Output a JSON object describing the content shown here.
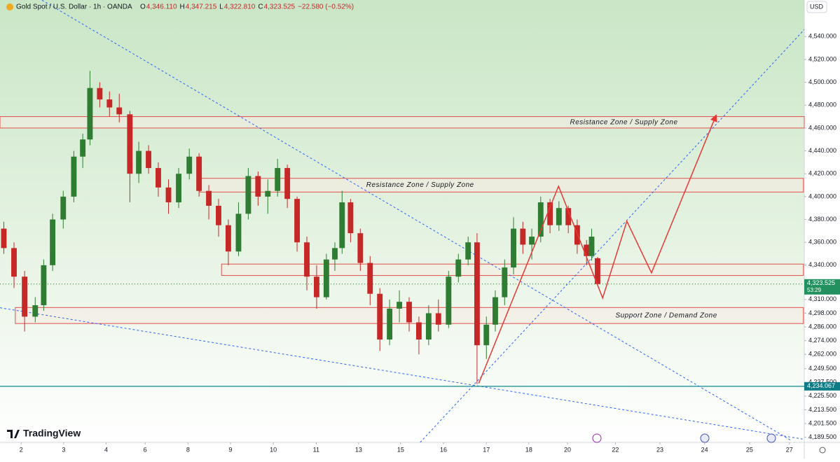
{
  "chart_data": {
    "type": "candlestick",
    "title": "Gold Spot / U.S. Dollar · 1h · OANDA",
    "quote": [
      {
        "label": "O",
        "value": "4,346.110"
      },
      {
        "label": "H",
        "value": "4,347.215"
      },
      {
        "label": "L",
        "value": "4,322.810"
      },
      {
        "label": "C",
        "value": "4,323.525"
      }
    ],
    "change": "−22.580 (−0.52%)",
    "currency": "USD",
    "brand": "TradingView",
    "up_color": "#2e7d32",
    "down_color": "#c62828",
    "x": [
      -0.41,
      -0.17,
      0.08,
      0.33,
      0.53,
      0.74,
      0.99,
      1.24,
      1.45,
      1.62,
      1.85,
      2.08,
      2.31,
      2.56,
      2.77,
      3.0,
      3.23,
      3.47,
      3.71,
      3.96,
      4.19,
      4.42,
      4.65,
      4.88,
      5.12,
      5.35,
      5.58,
      5.81,
      6.04,
      6.27,
      6.5,
      6.73,
      6.96,
      7.19,
      7.39,
      7.56,
      7.76,
      7.99,
      8.22,
      8.45,
      8.68,
      8.91,
      9.14,
      9.37,
      9.6,
      9.83,
      10.07,
      10.3,
      10.53,
      10.74,
      10.96,
      11.17,
      11.39,
      11.6,
      11.82,
      12.03,
      12.24,
      12.46,
      12.67,
      12.89,
      13.1,
      13.32,
      13.44,
      13.58
    ],
    "open": [
      4372,
      4355,
      4330,
      4295,
      4305,
      4340,
      4380,
      4400,
      4435,
      4450,
      4495,
      4485,
      4478,
      4472,
      4420,
      4440,
      4425,
      4408,
      4395,
      4420,
      4435,
      4405,
      4392,
      4375,
      4352,
      4385,
      4418,
      4400,
      4405,
      4425,
      4398,
      4360,
      4330,
      4312,
      4345,
      4355,
      4395,
      4368,
      4342,
      4315,
      4275,
      4302,
      4308,
      4290,
      4275,
      4298,
      4288,
      4330,
      4345,
      4360,
      4270,
      4288,
      4312,
      4338,
      4372,
      4358,
      4365,
      4395,
      4375,
      4390,
      4375,
      4358,
      4348,
      4346.11
    ],
    "high": [
      4378,
      4360,
      4335,
      4312,
      4345,
      4385,
      4405,
      4440,
      4455,
      4510,
      4500,
      4492,
      4490,
      4475,
      4448,
      4445,
      4430,
      4415,
      4425,
      4442,
      4438,
      4410,
      4398,
      4380,
      4395,
      4425,
      4422,
      4415,
      4433,
      4428,
      4400,
      4365,
      4340,
      4350,
      4360,
      4405,
      4398,
      4372,
      4348,
      4320,
      4310,
      4318,
      4312,
      4295,
      4305,
      4310,
      4335,
      4350,
      4365,
      4368,
      4295,
      4318,
      4345,
      4382,
      4378,
      4372,
      4400,
      4398,
      4396,
      4392,
      4380,
      4362,
      4372,
      4347.215
    ],
    "low": [
      4350,
      4320,
      4282,
      4290,
      4300,
      4335,
      4372,
      4395,
      4425,
      4445,
      4478,
      4470,
      4465,
      4395,
      4412,
      4420,
      4400,
      4385,
      4390,
      4415,
      4400,
      4380,
      4365,
      4340,
      4348,
      4380,
      4392,
      4385,
      4400,
      4390,
      4352,
      4318,
      4302,
      4310,
      4335,
      4350,
      4360,
      4335,
      4305,
      4265,
      4270,
      4290,
      4282,
      4262,
      4270,
      4282,
      4285,
      4325,
      4340,
      4236,
      4258,
      4282,
      4305,
      4332,
      4350,
      4345,
      4360,
      4368,
      4370,
      4368,
      4350,
      4340,
      4344,
      4322.81
    ],
    "close": [
      4355,
      4330,
      4295,
      4305,
      4340,
      4380,
      4400,
      4435,
      4450,
      4495,
      4485,
      4478,
      4472,
      4420,
      4440,
      4425,
      4408,
      4395,
      4420,
      4435,
      4405,
      4392,
      4375,
      4352,
      4385,
      4418,
      4400,
      4405,
      4425,
      4398,
      4360,
      4330,
      4312,
      4345,
      4355,
      4395,
      4368,
      4342,
      4315,
      4275,
      4302,
      4308,
      4290,
      4275,
      4298,
      4288,
      4330,
      4345,
      4360,
      4270,
      4288,
      4312,
      4338,
      4372,
      4358,
      4365,
      4395,
      4375,
      4390,
      4375,
      4358,
      4348,
      4365,
      4323.525
    ],
    "xlim": [
      -0.5,
      18.45
    ],
    "xticks": [
      {
        "value": 0,
        "label": "2"
      },
      {
        "value": 1,
        "label": "3"
      },
      {
        "value": 2,
        "label": "4"
      },
      {
        "value": 2.92,
        "label": "6"
      },
      {
        "value": 3.93,
        "label": "8"
      },
      {
        "value": 4.93,
        "label": "9"
      },
      {
        "value": 5.94,
        "label": "10"
      },
      {
        "value": 6.95,
        "label": "11"
      },
      {
        "value": 7.95,
        "label": "13"
      },
      {
        "value": 8.94,
        "label": "15"
      },
      {
        "value": 9.95,
        "label": "16"
      },
      {
        "value": 10.96,
        "label": "17"
      },
      {
        "value": 11.96,
        "label": "18"
      },
      {
        "value": 12.87,
        "label": "20"
      },
      {
        "value": 14.0,
        "label": "22"
      },
      {
        "value": 15.05,
        "label": "23"
      },
      {
        "value": 16.1,
        "label": "24"
      },
      {
        "value": 17.16,
        "label": "25"
      },
      {
        "value": 18.1,
        "label": "27"
      }
    ],
    "ylim": [
      4185,
      4572
    ],
    "yticks": [
      {
        "value": 4540,
        "label": "4,540.000"
      },
      {
        "value": 4520,
        "label": "4,520.000"
      },
      {
        "value": 4500,
        "label": "4,500.000"
      },
      {
        "value": 4480,
        "label": "4,480.000"
      },
      {
        "value": 4460,
        "label": "4,460.000"
      },
      {
        "value": 4440,
        "label": "4,440.000"
      },
      {
        "value": 4420,
        "label": "4,420.000"
      },
      {
        "value": 4400,
        "label": "4,400.000"
      },
      {
        "value": 4380,
        "label": "4,380.000"
      },
      {
        "value": 4360,
        "label": "4,360.000"
      },
      {
        "value": 4340,
        "label": "4,340.000"
      },
      {
        "value": 4310,
        "label": "4,310.000"
      },
      {
        "value": 4298,
        "label": "4,298.000"
      },
      {
        "value": 4286,
        "label": "4,286.000"
      },
      {
        "value": 4274,
        "label": "4,274.000"
      },
      {
        "value": 4262,
        "label": "4,262.000"
      },
      {
        "value": 4249.5,
        "label": "4,249.500"
      },
      {
        "value": 4237.5,
        "label": "4,237.500"
      },
      {
        "value": 4225.5,
        "label": "4,225.500"
      },
      {
        "value": 4213.5,
        "label": "4,213.500"
      },
      {
        "value": 4201.5,
        "label": "4,201.500"
      },
      {
        "value": 4189.5,
        "label": "4,189.500"
      }
    ],
    "last_price": {
      "value": 4323.525,
      "label": "4,323.525"
    },
    "countdown": "53:29",
    "hline": {
      "value": 4234.067,
      "label": "4,234.067"
    },
    "zones": [
      {
        "label": "Resistance Zone / Supply Zone",
        "top": 4470,
        "bottom": 4460,
        "x0": -0.5,
        "x1": 18.45,
        "label_x": 14.2
      },
      {
        "label": "Resistance Zone / Supply Zone",
        "top": 4416,
        "bottom": 4404,
        "x0": 4.21,
        "x1": 18.43,
        "label_x": 9.4
      },
      {
        "top": 4341,
        "bottom": 4331,
        "x0": 4.72,
        "x1": 18.43
      },
      {
        "label": "Support Zone / Demand Zone",
        "top": 4303,
        "bottom": 4289,
        "x0": -0.14,
        "x1": 18.43,
        "label_x": 15.2
      }
    ],
    "trendlines": [
      {
        "x": [
          0.49,
          18.15
        ],
        "y": [
          4571.8,
          4186.5
        ]
      },
      {
        "x": [
          -0.5,
          18.45
        ],
        "y": [
          4302.8,
          4187.7
        ]
      },
      {
        "x": [
          9.4,
          18.45
        ],
        "y": [
          4185.0,
          4546.1
        ]
      }
    ],
    "projection": {
      "color": "#e53935",
      "x": [
        10.78,
        12.66,
        13.7,
        14.27,
        14.85,
        16.37
      ],
      "y": [
        4236.6,
        4409.1,
        4311.3,
        4378.5,
        4333.3,
        4470.9
      ]
    }
  }
}
